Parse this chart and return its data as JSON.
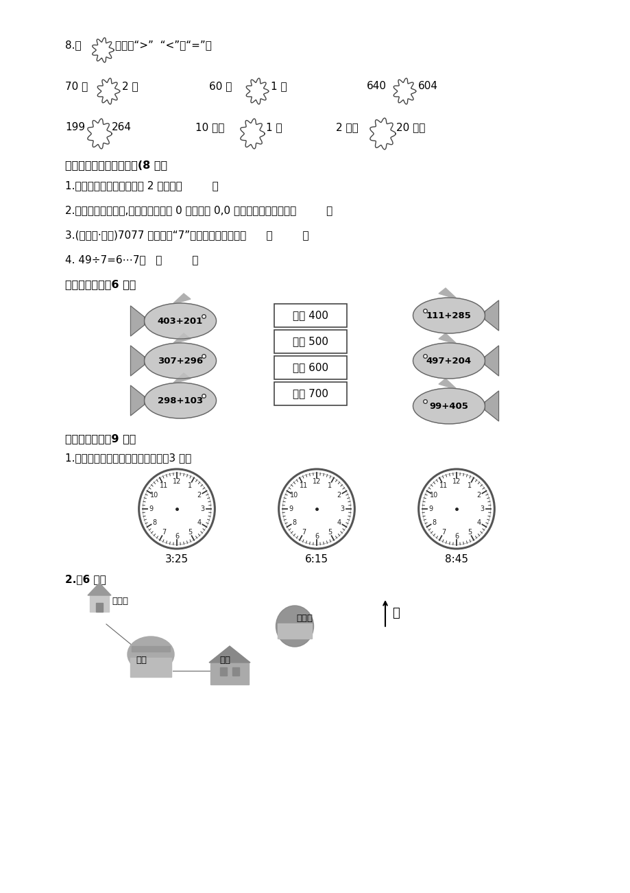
{
  "bg_color": "#ffffff",
  "text_color": "#000000",
  "section8_label1": "8.",
  "section8_label2": "在",
  "section8_label3": "里填上“>”  “<”或“=”。",
  "row1_left1": "70 秒",
  "row1_right1": "2 分",
  "row1_left2": "60 分",
  "row1_right2": "1 时",
  "row1_left3": "640",
  "row1_right3": "604",
  "row2_left1": "199",
  "row2_right1": "264",
  "row2_left2": "10 分米",
  "row2_right2": "1 米",
  "row2_left3": "2 分米",
  "row2_right3": "20 厘米",
  "section3_title": "三、我是腰明的小法官。(8 分）",
  "q1": "1.一根晒衣绳的长度大约是 2 分米。（         ）",
  "q2": "2.在读万以内的数时,数的中间有几个 0 就读几个 0,0 在数的末尾都不读。（         ）",
  "q3": "3.(连云港·期末)7077 中所有的“7”表示的意义都一样。      （         ）",
  "q4": "4. 49÷7=6⋯7。   （         ）",
  "section4_title": "四、连一连。（6 分）",
  "fish_left": [
    "403+201",
    "307+296",
    "298+103"
  ],
  "fish_right": [
    "111+285",
    "497+204",
    "99+405"
  ],
  "boxes": [
    "大约 400",
    "大约 500",
    "大约 600",
    "大约 700"
  ],
  "section5_title": "五、操作题。（9 分）",
  "clock_title": "1.画出钟面上缺少的时针和分针。（3 分）",
  "clock_times": [
    "3:25",
    "6:15",
    "8:45"
  ],
  "section2_sub": "2.（6 分）",
  "label_xiaohongjia": "小红家",
  "label_chengbao": "城堡",
  "label_xuexiao": "学校",
  "label_meishuguan": "美术馆",
  "label_north": "北"
}
